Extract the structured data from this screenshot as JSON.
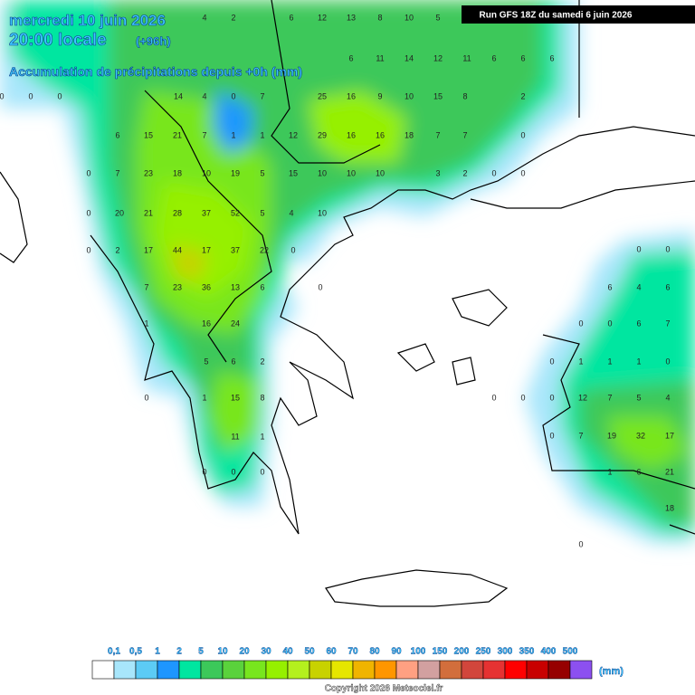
{
  "header": {
    "date": "mercredi 10 juin 2026",
    "time": "20:00 locale",
    "lead": "(+96h)",
    "subtitle": "Accumulation de précipitations depuis +0h (mm)",
    "run": "Run GFS 18Z du samedi 6 juin 2026"
  },
  "map_values": [
    4,
    2,
    6,
    12,
    13,
    8,
    10,
    5,
    6,
    11,
    14,
    12,
    11,
    6,
    6,
    6,
    0,
    0,
    0,
    14,
    4,
    0,
    7,
    25,
    16,
    9,
    10,
    15,
    8,
    2,
    6,
    15,
    21,
    7,
    1,
    1,
    12,
    29,
    16,
    16,
    18,
    7,
    7,
    0,
    0,
    7,
    23,
    18,
    10,
    19,
    5,
    15,
    10,
    10,
    10,
    3,
    2,
    0,
    0,
    0,
    20,
    21,
    28,
    37,
    52,
    5,
    4,
    10,
    0,
    2,
    17,
    44,
    17,
    37,
    22,
    0,
    7,
    23,
    36,
    13,
    6,
    0,
    1,
    16,
    24,
    5,
    6,
    2,
    0,
    1,
    15,
    8,
    11,
    1,
    0,
    0,
    0,
    0,
    0,
    6,
    4,
    6,
    0,
    0,
    6,
    7,
    0,
    1,
    1,
    1,
    0,
    0,
    0,
    0,
    12,
    7,
    5,
    4,
    0,
    7,
    19,
    32,
    17,
    1,
    6,
    21,
    18,
    0
  ],
  "legend": {
    "labels": [
      "0,1",
      "0,5",
      "1",
      "2",
      "5",
      "10",
      "20",
      "30",
      "40",
      "50",
      "60",
      "70",
      "80",
      "90",
      "100",
      "150",
      "200",
      "250",
      "300",
      "350",
      "400",
      "500"
    ],
    "unit": "(mm)",
    "colors": [
      "#ffffff",
      "#a8e6fb",
      "#5ccbf5",
      "#1e96ff",
      "#00e6a0",
      "#3cc85a",
      "#5ad23c",
      "#78e61e",
      "#96f000",
      "#b4f01e",
      "#c8d200",
      "#e6e600",
      "#f0b400",
      "#ff9600",
      "#ffa082",
      "#d2a0a0",
      "#d26e3c",
      "#d2463c",
      "#e63232",
      "#ff0000",
      "#c80000",
      "#960000",
      "#8c50f0"
    ]
  },
  "footer": {
    "copyright": "Copyright 2026 Meteociel.fr"
  }
}
